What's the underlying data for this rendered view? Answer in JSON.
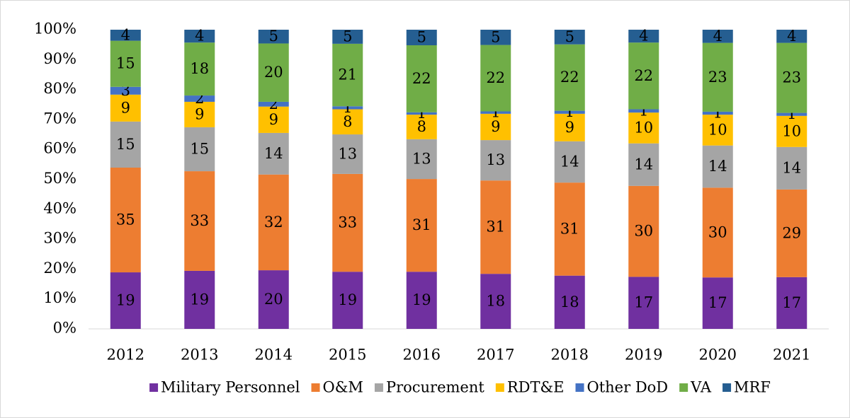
{
  "chart_data": {
    "type": "bar",
    "stacked": true,
    "categories": [
      "2012",
      "2013",
      "2014",
      "2015",
      "2016",
      "2017",
      "2018",
      "2019",
      "2020",
      "2021"
    ],
    "ylim": [
      0,
      100
    ],
    "yticks": [
      {
        "value": 0,
        "label": "0%"
      },
      {
        "value": 10,
        "label": "10%"
      },
      {
        "value": 20,
        "label": "20%"
      },
      {
        "value": 30,
        "label": "30%"
      },
      {
        "value": 40,
        "label": "40%"
      },
      {
        "value": 50,
        "label": "50%"
      },
      {
        "value": 60,
        "label": "60%"
      },
      {
        "value": 70,
        "label": "70%"
      },
      {
        "value": 80,
        "label": "80%"
      },
      {
        "value": 90,
        "label": "90%"
      },
      {
        "value": 100,
        "label": "100%"
      }
    ],
    "legend": "bottom",
    "series": [
      {
        "name": "Military Personnel",
        "color": "#7030a0",
        "values": [
          18.9,
          19.4,
          19.6,
          19.1,
          19.1,
          18.4,
          17.8,
          17.4,
          17.2,
          17.3
        ],
        "value_labels": [
          "19",
          "19",
          "20",
          "19",
          "19",
          "18",
          "18",
          "17",
          "17",
          "17"
        ]
      },
      {
        "name": "O&M",
        "color": "#ed7d31",
        "values": [
          35.0,
          33.3,
          32.0,
          32.7,
          31.0,
          31.2,
          31.1,
          30.4,
          30.0,
          29.3
        ],
        "value_labels": [
          "35",
          "33",
          "32",
          "33",
          "31",
          "31",
          "31",
          "30",
          "30",
          "29"
        ]
      },
      {
        "name": "Procurement",
        "color": "#a5a5a5",
        "values": [
          15.4,
          14.7,
          13.9,
          13.2,
          13.3,
          13.5,
          13.8,
          14.2,
          14.1,
          14.2
        ],
        "value_labels": [
          "15",
          "15",
          "14",
          "13",
          "13",
          "13",
          "14",
          "14",
          "14",
          "14"
        ]
      },
      {
        "name": "RDT&E",
        "color": "#ffc000",
        "values": [
          9.0,
          8.5,
          8.8,
          8.4,
          8.2,
          8.8,
          9.2,
          10.3,
          10.3,
          10.4
        ],
        "value_labels": [
          "9",
          "9",
          "9",
          "8",
          "8",
          "9",
          "9",
          "10",
          "10",
          "10"
        ]
      },
      {
        "name": "Other DoD",
        "color": "#4472c4",
        "values": [
          2.6,
          2.1,
          1.6,
          1.0,
          0.8,
          0.8,
          1.0,
          1.1,
          1.0,
          1.0
        ],
        "value_labels": [
          "3",
          "2",
          "2",
          "1",
          "1",
          "1",
          "1",
          "1",
          "1",
          "1"
        ]
      },
      {
        "name": "VA",
        "color": "#70ad47",
        "values": [
          15.4,
          17.7,
          19.5,
          20.9,
          22.4,
          22.2,
          22.2,
          22.3,
          23.0,
          23.4
        ],
        "value_labels": [
          "15",
          "18",
          "20",
          "21",
          "22",
          "22",
          "22",
          "22",
          "23",
          "23"
        ]
      },
      {
        "name": "MRF",
        "color": "#255e91",
        "values": [
          3.7,
          4.3,
          4.6,
          4.7,
          5.2,
          5.1,
          4.9,
          4.3,
          4.4,
          4.4
        ],
        "value_labels": [
          "4",
          "4",
          "5",
          "5",
          "5",
          "5",
          "5",
          "4",
          "4",
          "4"
        ]
      }
    ]
  }
}
